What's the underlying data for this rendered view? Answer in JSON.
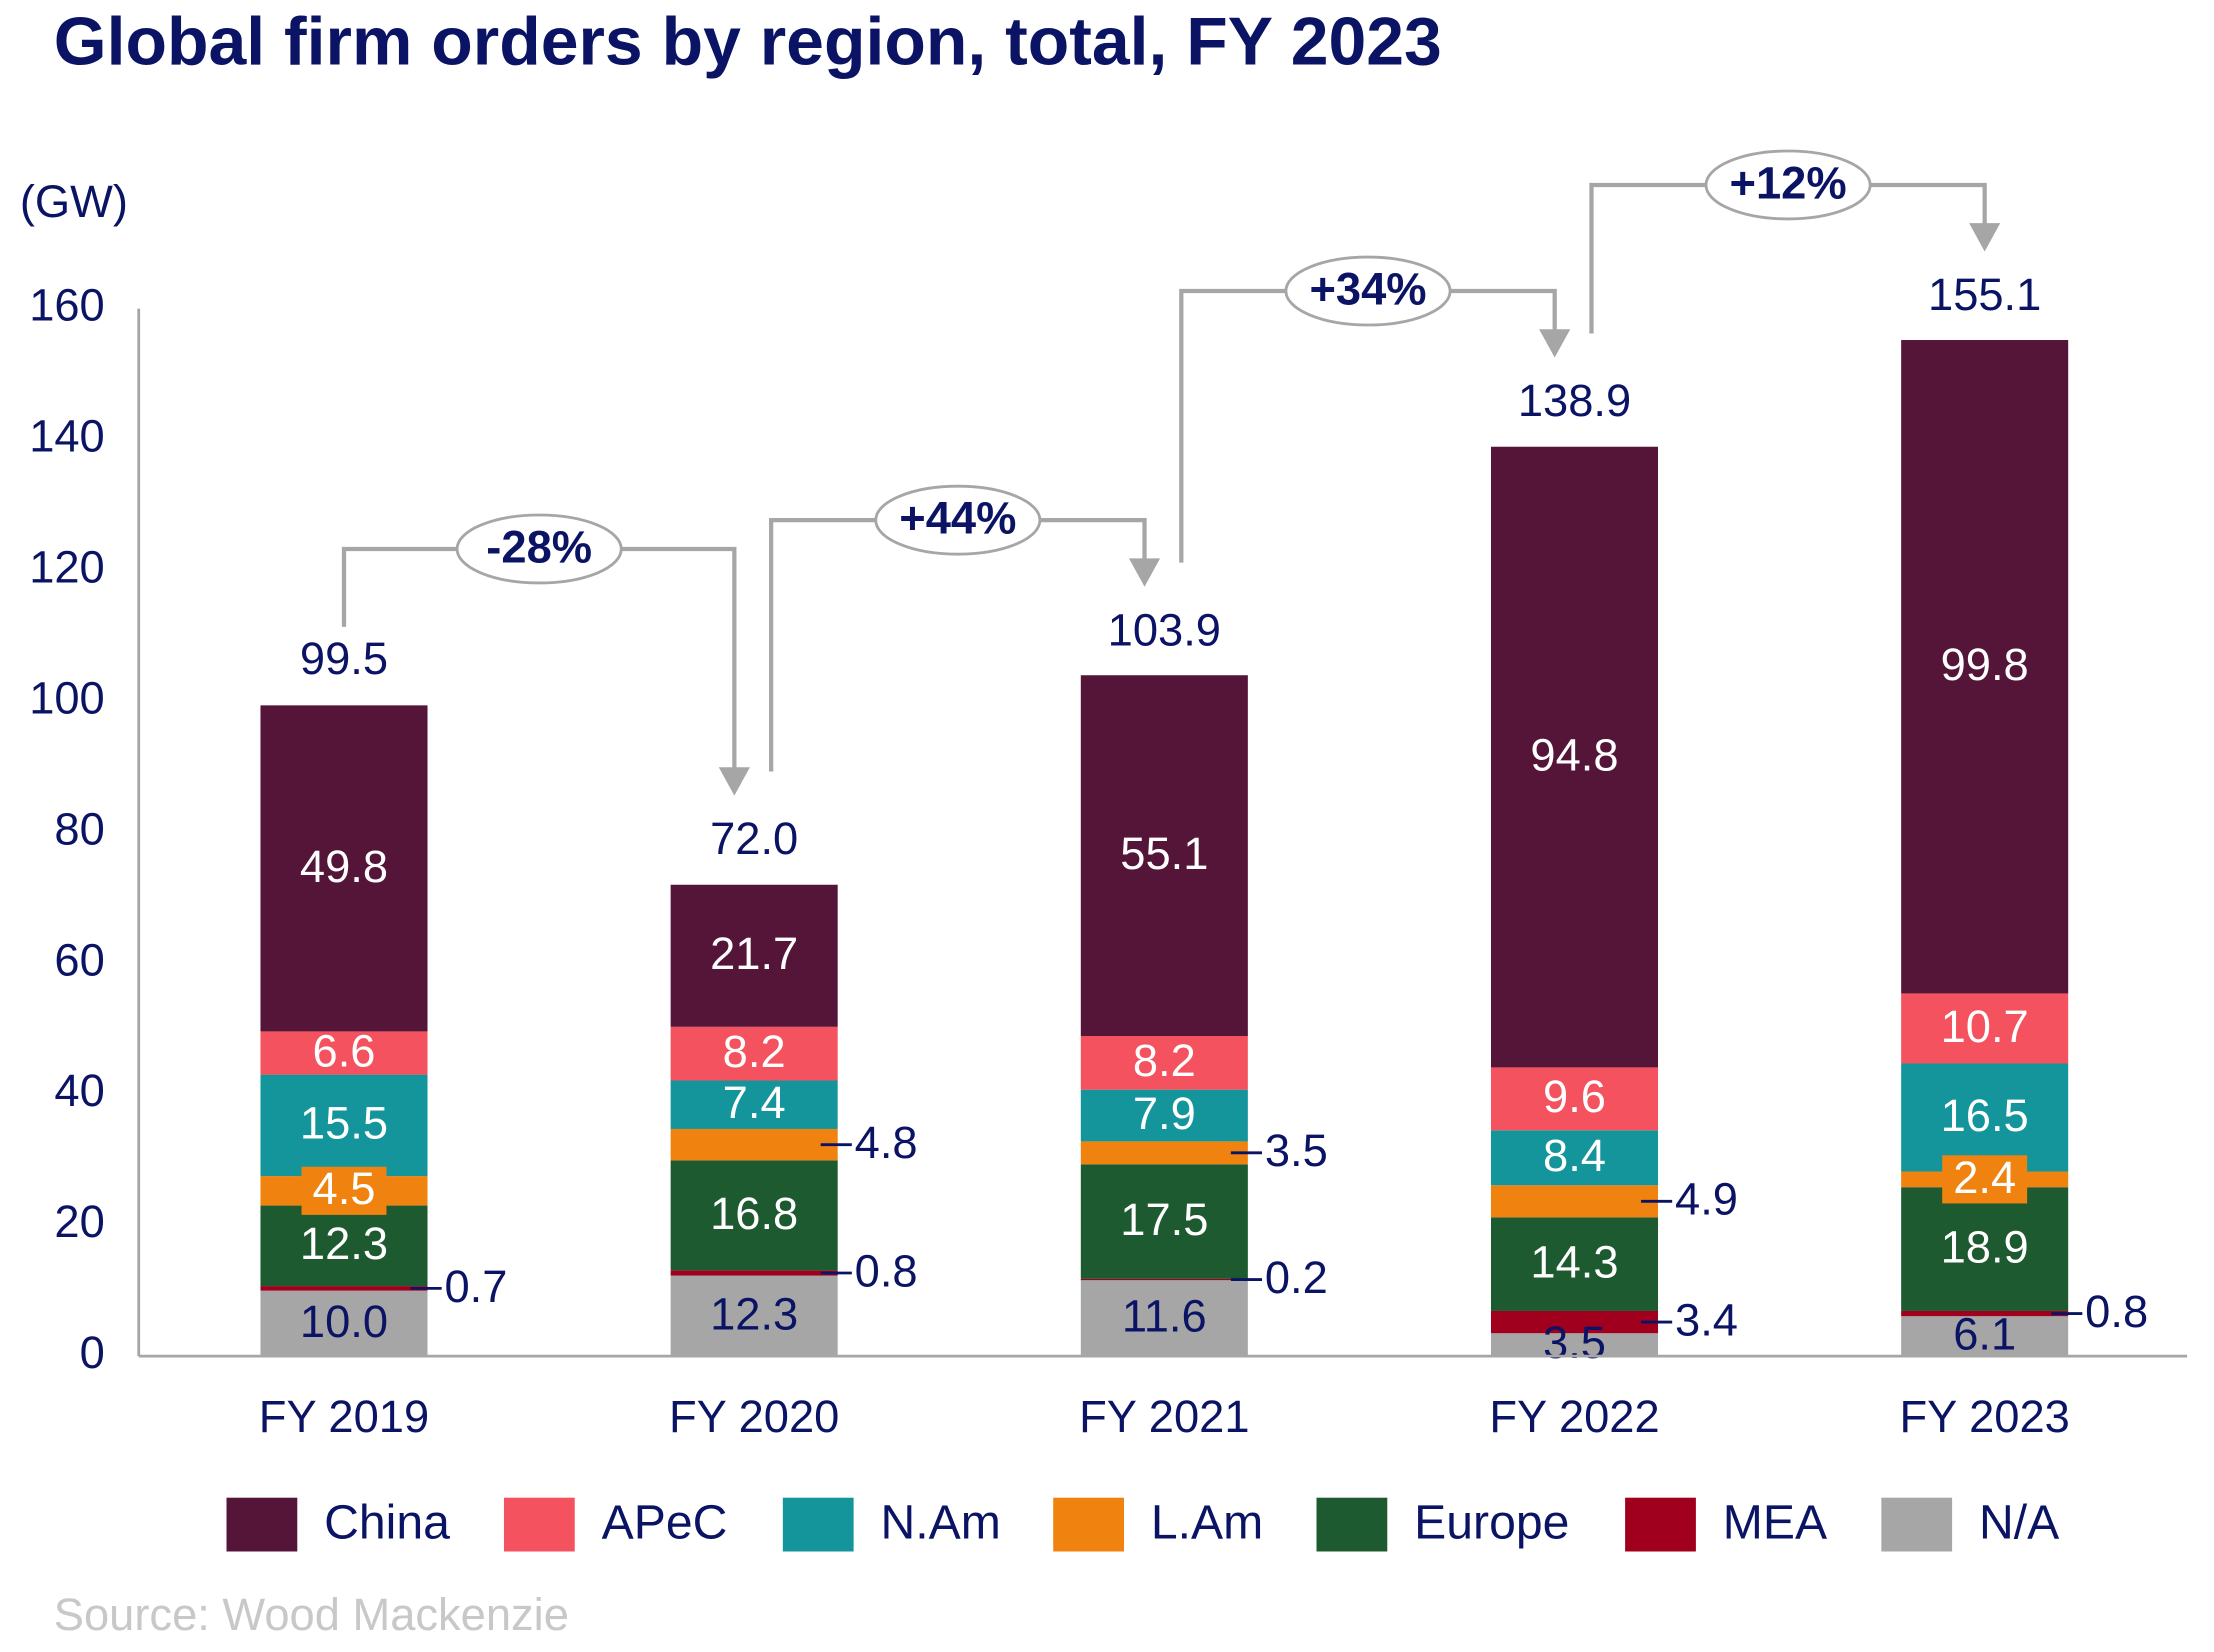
{
  "chart_data": {
    "type": "stacked_bar",
    "title": "Global firm orders by region, total, FY 2023",
    "y_label": "(GW)",
    "source": "Source: Wood Mackenzie",
    "categories": [
      "FY 2019",
      "FY 2020",
      "FY 2021",
      "FY 2022",
      "FY 2023"
    ],
    "series": [
      {
        "name": "N/A",
        "color": "#a6a6a6",
        "values": [
          10.0,
          12.3,
          11.6,
          3.5,
          6.1
        ],
        "value_labels": [
          "10.0",
          "12.3",
          "11.6",
          "3.5",
          "6.1"
        ]
      },
      {
        "name": "MEA",
        "color": "#a0001e",
        "values": [
          0.7,
          0.8,
          0.2,
          3.4,
          0.8
        ]
      },
      {
        "name": "Europe",
        "color": "#1e5a30",
        "values": [
          12.3,
          16.8,
          17.5,
          14.3,
          18.9
        ]
      },
      {
        "name": "L.Am",
        "color": "#f0820f",
        "values": [
          4.5,
          4.8,
          3.5,
          4.9,
          2.4
        ]
      },
      {
        "name": "N.Am",
        "color": "#14959b",
        "values": [
          15.5,
          7.4,
          7.9,
          8.4,
          16.5
        ]
      },
      {
        "name": "APeC",
        "color": "#f4525e",
        "values": [
          6.6,
          8.2,
          8.2,
          9.6,
          10.7
        ]
      },
      {
        "name": "China",
        "color": "#541538",
        "values": [
          49.8,
          21.7,
          55.1,
          94.8,
          99.8
        ]
      }
    ],
    "totals": [
      99.5,
      72.0,
      103.9,
      138.9,
      155.1
    ],
    "totals_value_labels": [
      "99.5",
      "72.0",
      "103.9",
      "138.9",
      "155.1"
    ],
    "changes": [
      "-28%",
      "+44%",
      "+34%",
      "+12%"
    ],
    "ylim": [
      0,
      160
    ],
    "yticks": [
      0,
      20,
      40,
      60,
      80,
      100,
      120,
      140,
      160
    ],
    "legend": "bottom"
  }
}
